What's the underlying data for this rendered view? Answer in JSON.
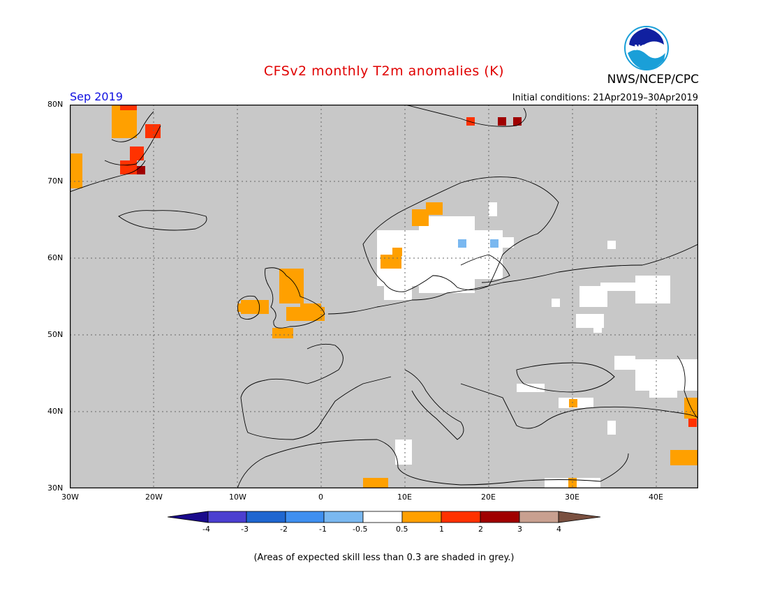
{
  "title": "CFSv2 monthly T2m anomalies (K)",
  "agency": "NWS/NCEP/CPC",
  "logo_text": "NOAA",
  "month": "Sep 2019",
  "initial_conditions": "Initial conditions: 21Apr2019–30Apr2019",
  "footnote": "(Areas of expected skill less than 0.3 are shaded in grey.)",
  "map": {
    "lon_range": [
      -30,
      45
    ],
    "lat_range": [
      30,
      80
    ],
    "grey_color": "#c8c8c8",
    "gridlines": "dotted",
    "lat_labels": [
      "80N",
      "70N",
      "60N",
      "50N",
      "40N",
      "30N"
    ],
    "lon_labels": [
      "30W",
      "20W",
      "10W",
      "0",
      "10E",
      "20E",
      "30E",
      "40E"
    ]
  },
  "colorbar": {
    "tick_labels": [
      "-4",
      "-3",
      "-2",
      "-1",
      "-0.5",
      "0.5",
      "1",
      "2",
      "3",
      "4"
    ],
    "colors": [
      "#1a0a8c",
      "#4b3fd0",
      "#1f66d0",
      "#3f8ff0",
      "#7ab8f0",
      "#ffffff",
      "#ffa000",
      "#ff3200",
      "#a00000",
      "#c8a090",
      "#7a5040"
    ]
  }
}
